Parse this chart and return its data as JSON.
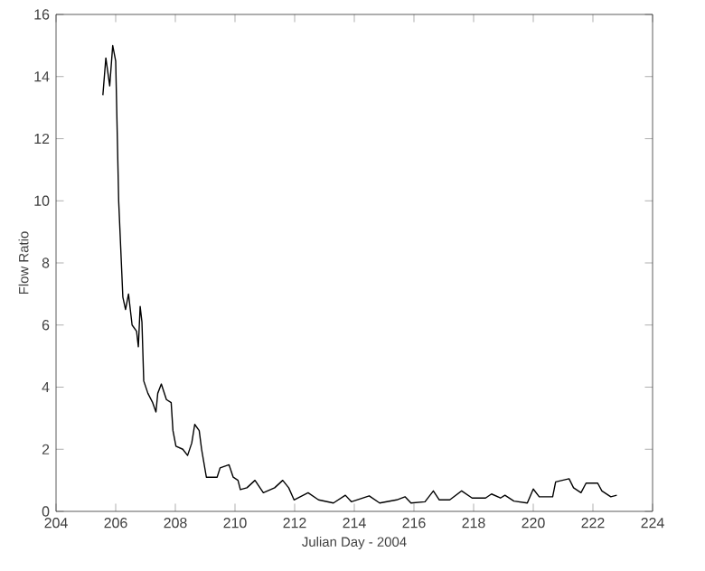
{
  "chart_data": {
    "type": "line",
    "xlabel": "Julian Day - 2004",
    "ylabel": "Flow Ratio",
    "xlim": [
      204,
      224
    ],
    "ylim": [
      0,
      16
    ],
    "xticks": [
      204,
      206,
      208,
      210,
      212,
      214,
      216,
      218,
      220,
      222,
      224
    ],
    "yticks": [
      0,
      2,
      4,
      6,
      8,
      10,
      12,
      14,
      16
    ],
    "grid": false,
    "marker": "none",
    "line_style": "solid",
    "series": [
      {
        "color": "#000000",
        "x": [
          205.57,
          205.67,
          205.8,
          205.9,
          206.0,
          206.1,
          206.24,
          206.33,
          206.43,
          206.55,
          206.7,
          206.76,
          206.82,
          206.88,
          206.94,
          207.08,
          207.24,
          207.35,
          207.41,
          207.53,
          207.7,
          207.86,
          207.92,
          208.02,
          208.25,
          208.41,
          208.55,
          208.65,
          208.8,
          208.88,
          209.04,
          209.4,
          209.5,
          209.8,
          209.94,
          210.1,
          210.18,
          210.4,
          210.67,
          210.95,
          211.33,
          211.6,
          211.8,
          211.98,
          212.45,
          212.8,
          213.3,
          213.7,
          213.9,
          214.5,
          214.85,
          215.42,
          215.7,
          215.9,
          216.37,
          216.65,
          216.85,
          217.2,
          217.6,
          217.95,
          218.4,
          218.6,
          218.9,
          219.05,
          219.35,
          219.8,
          220.0,
          220.2,
          220.65,
          220.75,
          221.2,
          221.35,
          221.6,
          221.77,
          222.16,
          222.3,
          222.6,
          222.8
        ],
        "values": [
          13.4,
          14.6,
          13.7,
          15.0,
          14.5,
          10.0,
          6.9,
          6.5,
          7.0,
          6.0,
          5.8,
          5.3,
          6.6,
          6.1,
          4.2,
          3.8,
          3.5,
          3.2,
          3.8,
          4.1,
          3.6,
          3.5,
          2.6,
          2.1,
          2.0,
          1.8,
          2.2,
          2.8,
          2.6,
          2.0,
          1.1,
          1.1,
          1.4,
          1.5,
          1.1,
          1.0,
          0.7,
          0.76,
          1.0,
          0.6,
          0.76,
          1.0,
          0.76,
          0.37,
          0.6,
          0.37,
          0.27,
          0.52,
          0.31,
          0.5,
          0.27,
          0.37,
          0.47,
          0.27,
          0.31,
          0.66,
          0.37,
          0.37,
          0.66,
          0.43,
          0.43,
          0.56,
          0.43,
          0.52,
          0.33,
          0.27,
          0.72,
          0.47,
          0.47,
          0.95,
          1.05,
          0.76,
          0.6,
          0.91,
          0.91,
          0.66,
          0.47,
          0.52
        ]
      }
    ]
  }
}
